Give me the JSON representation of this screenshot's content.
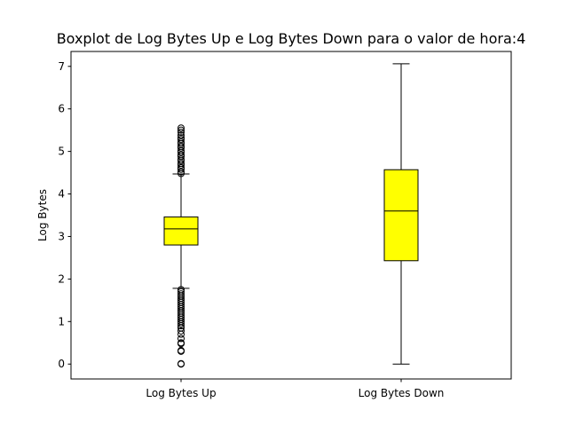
{
  "chart_data": {
    "type": "boxplot",
    "title": "Boxplot de Log Bytes Up e Log Bytes Down para o valor de hora:4",
    "xlabel": "",
    "ylabel": "Log Bytes",
    "ylim": [
      -0.35,
      7.35
    ],
    "yticks": [
      "0",
      "1",
      "2",
      "3",
      "4",
      "5",
      "6",
      "7"
    ],
    "grid": false,
    "box_color": "#ffff00",
    "categories": [
      "Log Bytes Up",
      "Log Bytes Down"
    ],
    "boxes": [
      {
        "name": "Log Bytes Up",
        "whisker_low": 1.78,
        "q1": 2.8,
        "median": 3.18,
        "q3": 3.46,
        "whisker_high": 4.47,
        "outliers": [
          0.0,
          0.01,
          0.3,
          0.32,
          0.48,
          0.5,
          0.6,
          0.7,
          0.78,
          0.85,
          0.9,
          0.95,
          1.0,
          1.05,
          1.1,
          1.15,
          1.2,
          1.25,
          1.3,
          1.35,
          1.4,
          1.45,
          1.5,
          1.55,
          1.6,
          1.65,
          1.7,
          1.75,
          4.48,
          4.52,
          4.58,
          4.62,
          4.68,
          4.72,
          4.78,
          4.82,
          4.88,
          4.92,
          4.98,
          5.02,
          5.08,
          5.12,
          5.18,
          5.22,
          5.28,
          5.32,
          5.38,
          5.45,
          5.5,
          5.55
        ]
      },
      {
        "name": "Log Bytes Down",
        "whisker_low": 0.0,
        "q1": 2.43,
        "median": 3.6,
        "q3": 4.57,
        "whisker_high": 7.06,
        "outliers": []
      }
    ]
  }
}
